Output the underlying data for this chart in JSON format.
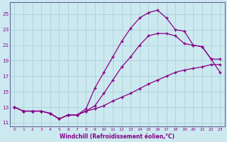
{
  "background_color": "#cce9f0",
  "grid_color": "#b0d4dc",
  "line_color": "#880088",
  "spine_color": "#666699",
  "xlabel": "Windchill (Refroidissement éolien,°C)",
  "xlim": [
    -0.5,
    23.5
  ],
  "ylim": [
    10.5,
    26.5
  ],
  "yticks": [
    11,
    13,
    15,
    17,
    19,
    21,
    23,
    25
  ],
  "xticks": [
    0,
    1,
    2,
    3,
    4,
    5,
    6,
    7,
    8,
    9,
    10,
    11,
    12,
    13,
    14,
    15,
    16,
    17,
    18,
    19,
    20,
    21,
    22,
    23
  ],
  "line2_x": [
    0,
    1,
    2,
    3,
    4,
    5,
    6,
    7,
    8,
    9,
    10,
    11,
    12,
    13,
    14,
    15,
    16,
    17,
    18,
    19,
    20,
    21,
    22,
    23
  ],
  "line2_y": [
    13.0,
    12.5,
    12.5,
    12.5,
    12.2,
    11.5,
    12.0,
    12.0,
    12.8,
    15.5,
    17.5,
    19.5,
    21.5,
    23.2,
    24.5,
    25.2,
    25.5,
    24.5,
    23.0,
    22.8,
    21.0,
    20.8,
    19.2,
    17.5
  ],
  "line1_x": [
    0,
    1,
    2,
    3,
    4,
    5,
    6,
    7,
    8,
    9,
    10,
    11,
    12,
    13,
    14,
    15,
    16,
    17,
    18,
    19,
    20,
    21,
    22,
    23
  ],
  "line1_y": [
    13.0,
    12.5,
    12.5,
    12.5,
    12.2,
    11.5,
    12.0,
    12.0,
    12.5,
    13.2,
    14.8,
    16.5,
    18.2,
    19.5,
    21.0,
    22.2,
    22.5,
    22.5,
    22.2,
    21.2,
    21.0,
    20.8,
    19.2,
    19.2
  ],
  "line3_x": [
    0,
    1,
    2,
    3,
    4,
    5,
    6,
    7,
    8,
    9,
    10,
    11,
    12,
    13,
    14,
    15,
    16,
    17,
    18,
    19,
    20,
    21,
    22,
    23
  ],
  "line3_y": [
    13.0,
    12.5,
    12.5,
    12.5,
    12.2,
    11.5,
    12.0,
    12.0,
    12.5,
    12.8,
    13.2,
    13.8,
    14.3,
    14.8,
    15.4,
    16.0,
    16.5,
    17.0,
    17.5,
    17.8,
    18.0,
    18.2,
    18.5,
    18.5
  ]
}
